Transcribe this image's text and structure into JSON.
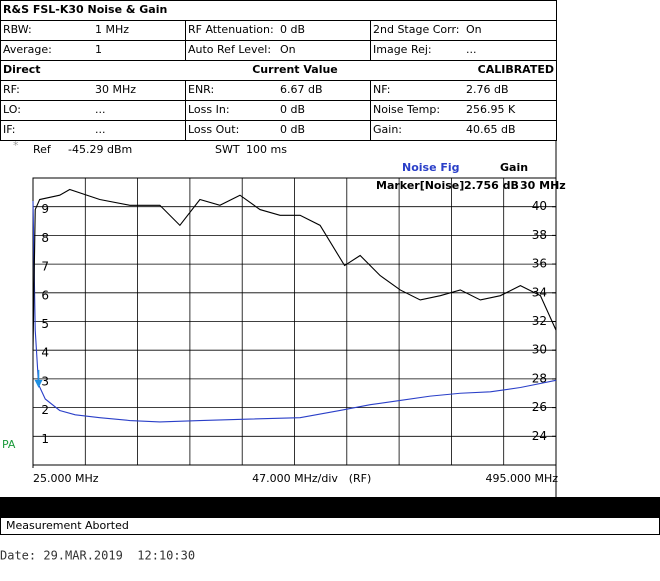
{
  "header": {
    "title": "R&S FSL-K30 Noise & Gain"
  },
  "settings": {
    "rows": [
      [
        "RBW:",
        "1 MHz",
        "RF Attenuation:",
        "0 dB",
        "2nd Stage Corr:",
        "On"
      ],
      [
        "Average:",
        "1",
        "Auto Ref Level:",
        "On",
        "Image Rej:",
        "..."
      ]
    ]
  },
  "results": {
    "columns": [
      "Direct",
      "Current Value",
      "CALIBRATED"
    ],
    "rows": [
      [
        "RF:",
        "30 MHz",
        "ENR:",
        "6.67 dB",
        "NF:",
        "2.76 dB"
      ],
      [
        "LO:",
        "...",
        "Loss In:",
        "0 dB",
        "Noise Temp:",
        "256.95 K"
      ],
      [
        "IF:",
        "...",
        "Loss Out:",
        "0 dB",
        "Gain:",
        "40.65 dB"
      ]
    ]
  },
  "ref": {
    "star": "*",
    "label": "Ref",
    "value": "-45.29 dBm",
    "swt_label": "SWT",
    "swt_value": "100 ms"
  },
  "chart_data": {
    "type": "line",
    "series": [
      {
        "name": "Noise Fig",
        "color": "#2a3fc8",
        "axis": "y",
        "x": [
          25,
          27,
          30,
          36,
          49,
          63,
          85,
          112,
          139,
          175,
          220,
          265,
          301,
          328,
          355,
          382,
          409,
          436,
          463,
          495
        ],
        "values": [
          9.2,
          4.7,
          2.8,
          2.3,
          1.9,
          1.75,
          1.65,
          1.55,
          1.5,
          1.55,
          1.6,
          1.65,
          1.9,
          2.1,
          2.25,
          2.4,
          2.5,
          2.55,
          2.7,
          2.95
        ]
      },
      {
        "name": "Gain",
        "color": "#000000",
        "axis": "y2",
        "x": [
          25,
          27,
          31,
          49,
          58,
          85,
          112,
          139,
          157,
          175,
          193,
          211,
          229,
          247,
          265,
          283,
          305,
          319,
          337,
          355,
          373,
          391,
          409,
          427,
          445,
          463,
          481,
          495
        ],
        "values": [
          30.0,
          39.8,
          40.5,
          40.8,
          41.2,
          40.5,
          40.1,
          40.1,
          38.7,
          40.5,
          40.1,
          40.8,
          39.8,
          39.4,
          39.4,
          38.7,
          35.9,
          36.6,
          35.2,
          34.2,
          33.5,
          33.8,
          34.2,
          33.5,
          33.8,
          34.5,
          33.8,
          31.4
        ]
      }
    ],
    "xlim": [
      25,
      495
    ],
    "xticks": [
      {
        "value": 25,
        "label": "25.000 MHz"
      },
      {
        "value": 495,
        "label": "495.000 MHz"
      }
    ],
    "x_annotations": [
      "47.000 MHz/div",
      "(RF)"
    ],
    "ylim": [
      0,
      10
    ],
    "yticks": [
      1,
      2,
      3,
      4,
      5,
      6,
      7,
      8,
      9
    ],
    "y2lim": [
      22,
      42
    ],
    "y2ticks": [
      24,
      26,
      28,
      30,
      32,
      34,
      36,
      38,
      40
    ],
    "grid": true,
    "marker": {
      "label": "Marker[Noise]",
      "value_label": "2.756 dB",
      "x_label": "30 MHz",
      "value": 2.756,
      "x": 30
    },
    "side_label": "PA"
  },
  "status": "Measurement Aborted",
  "date": "Date: 29.MAR.2019  12:10:30"
}
